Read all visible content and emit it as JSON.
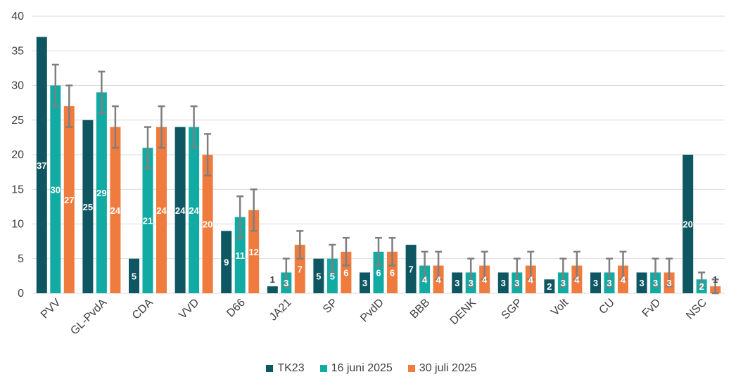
{
  "chart_data": {
    "type": "bar",
    "categories": [
      "PVV",
      "GL-PvdA",
      "CDA",
      "VVD",
      "D66",
      "JA21",
      "SP",
      "PvdD",
      "BBB",
      "DENK",
      "SGP",
      "Volt",
      "CU",
      "FvD",
      "NSC"
    ],
    "series": [
      {
        "name": "TK23",
        "color": "#0E5762",
        "values": [
          37,
          25,
          5,
          24,
          9,
          1,
          5,
          3,
          7,
          3,
          3,
          2,
          3,
          3,
          20
        ],
        "error": null
      },
      {
        "name": "16 juni 2025",
        "color": "#12ABA4",
        "values": [
          30,
          29,
          21,
          24,
          11,
          3,
          5,
          6,
          4,
          3,
          3,
          3,
          3,
          3,
          2
        ],
        "error": [
          3,
          3,
          3,
          3,
          3,
          2,
          2,
          2,
          2,
          2,
          2,
          2,
          2,
          2,
          1
        ]
      },
      {
        "name": "30 juli 2025",
        "color": "#EF7B3E",
        "values": [
          27,
          24,
          24,
          20,
          12,
          7,
          6,
          6,
          4,
          4,
          4,
          4,
          4,
          3,
          1
        ],
        "error": [
          3,
          3,
          3,
          3,
          3,
          2,
          2,
          2,
          2,
          2,
          2,
          2,
          2,
          2,
          1
        ]
      }
    ],
    "ylim": [
      0,
      40
    ],
    "yticks": [
      "0",
      "5",
      "10",
      "15",
      "20",
      "25",
      "30",
      "35",
      "40"
    ],
    "grid": true,
    "legend_position": "bottom",
    "error_bar_color": "#7F7F7F",
    "gridline_color": "#D9D9D9",
    "title": "",
    "xlabel": "",
    "ylabel": ""
  }
}
